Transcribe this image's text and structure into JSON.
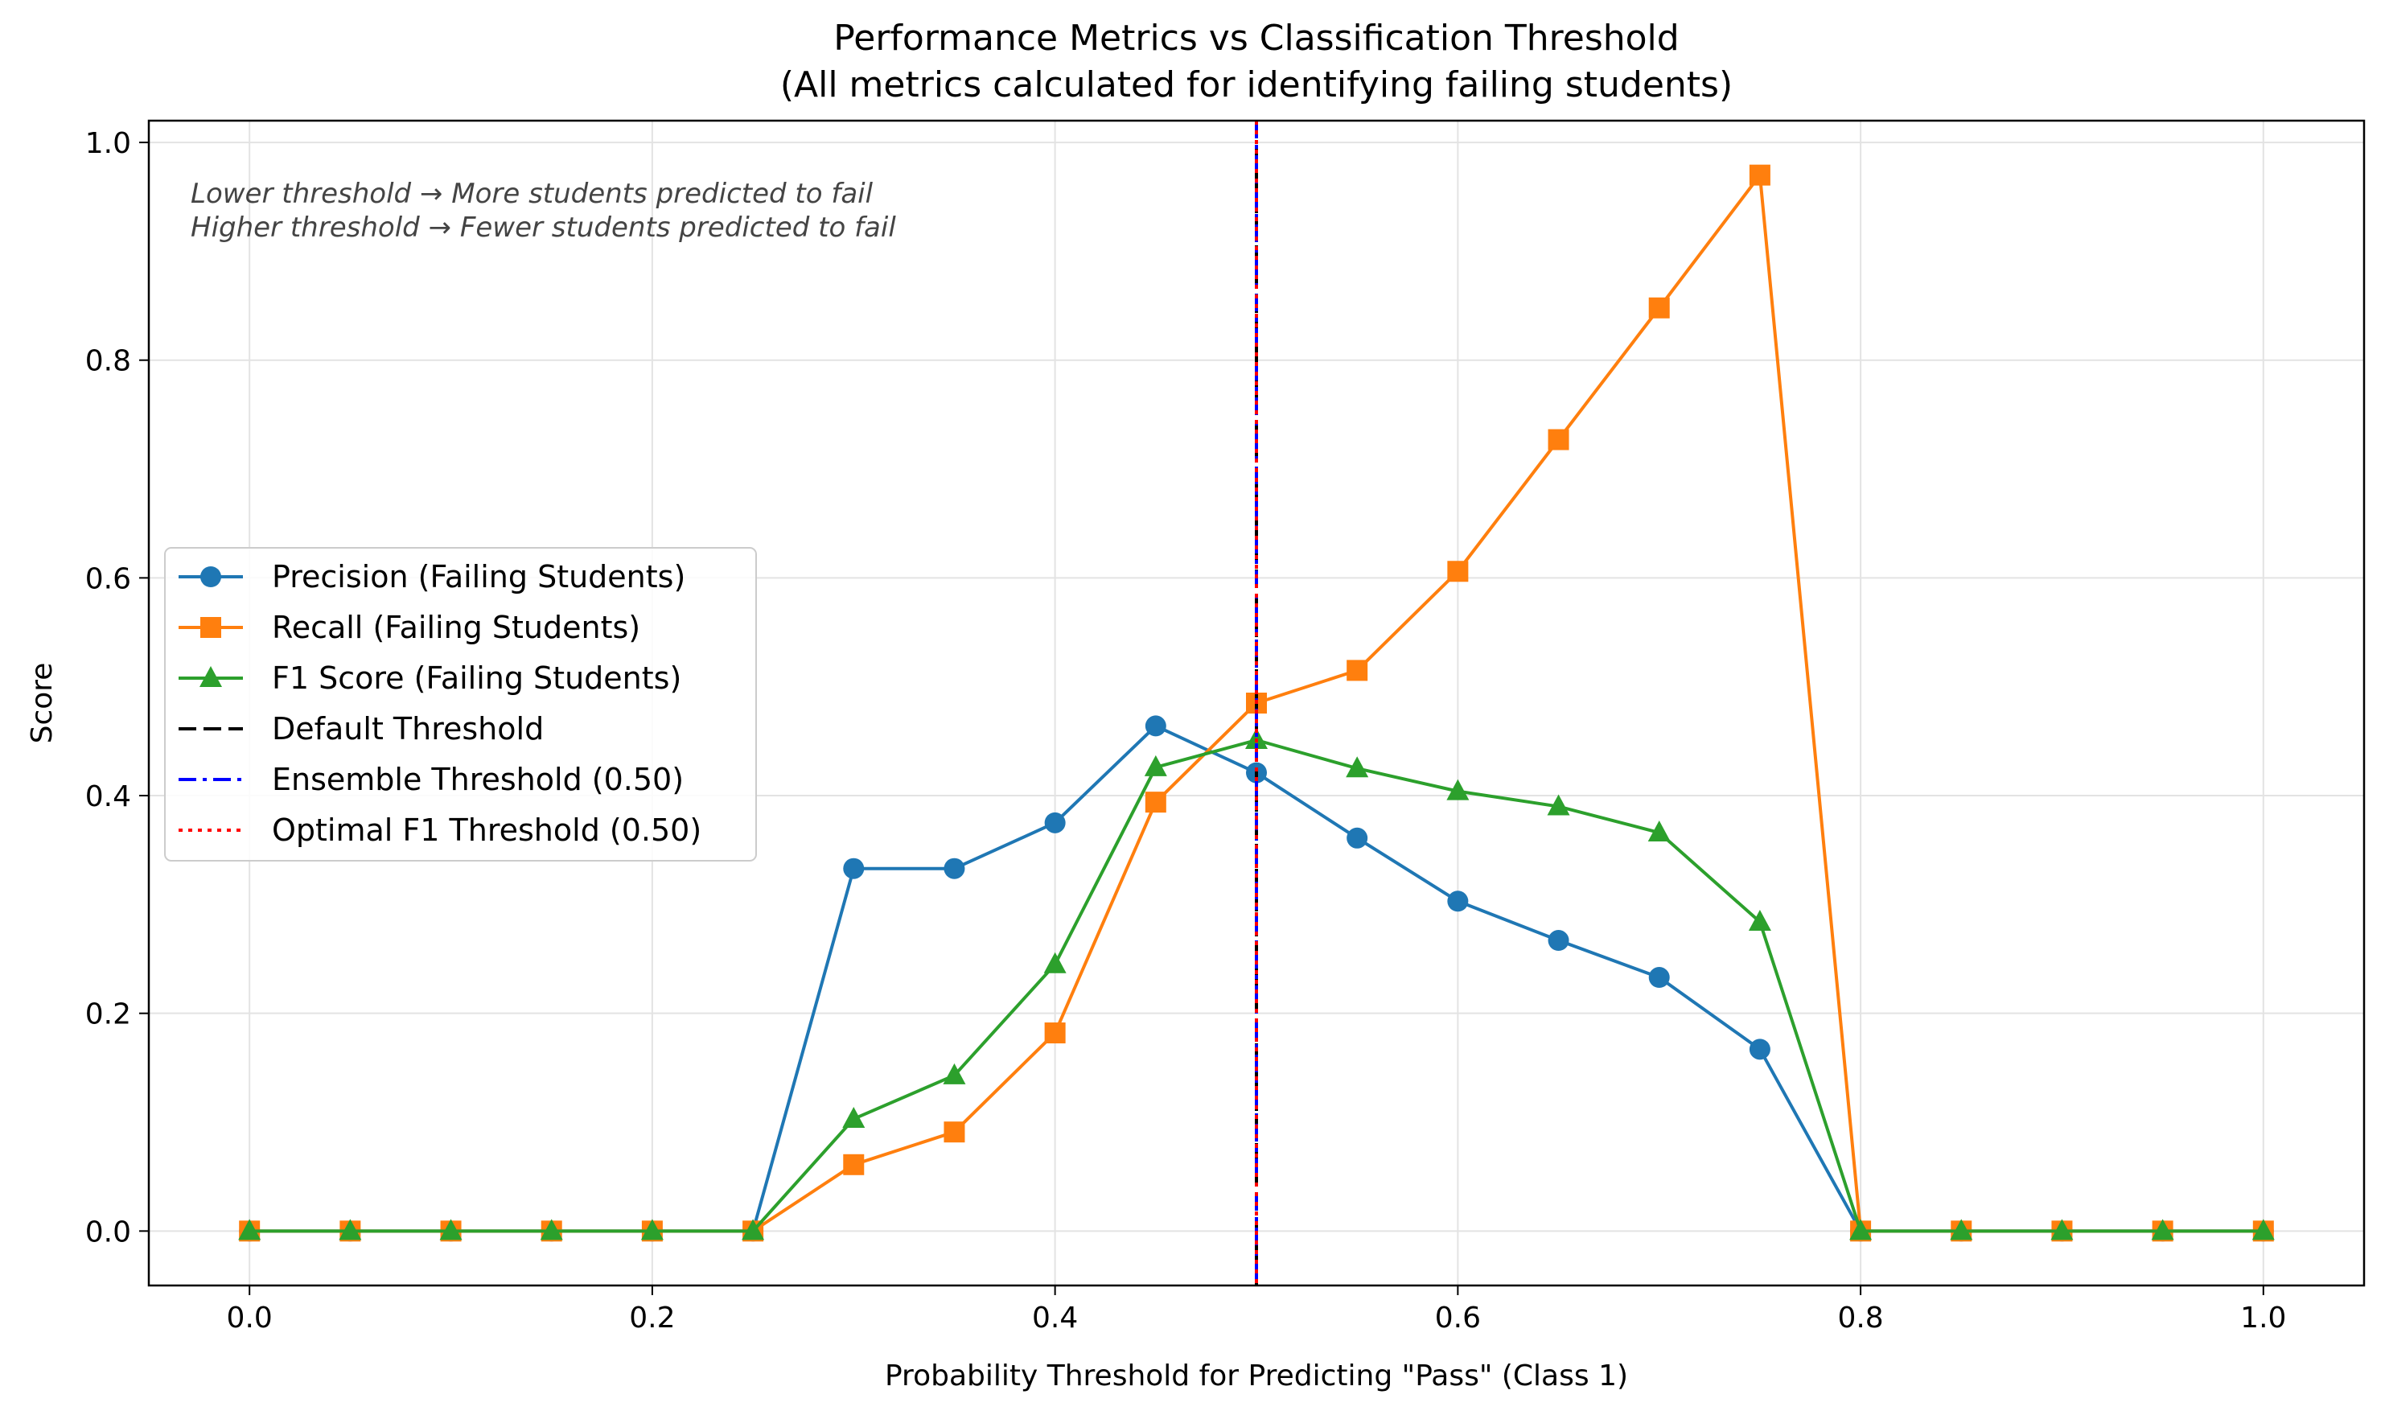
{
  "chart_data": {
    "type": "line",
    "title": "Performance Metrics vs Classification Threshold",
    "subtitle": "(All metrics calculated for identifying failing students)",
    "xlabel": "Probability Threshold for Predicting \"Pass\" (Class 1)",
    "ylabel": "Score",
    "xlim": [
      -0.05,
      1.05
    ],
    "ylim": [
      -0.05,
      1.02
    ],
    "xticks": [
      0.0,
      0.2,
      0.4,
      0.6,
      0.8,
      1.0
    ],
    "xtick_labels": [
      "0.0",
      "0.2",
      "0.4",
      "0.6",
      "0.8",
      "1.0"
    ],
    "yticks": [
      0.0,
      0.2,
      0.4,
      0.6,
      0.8,
      1.0
    ],
    "ytick_labels": [
      "0.0",
      "0.2",
      "0.4",
      "0.6",
      "0.8",
      "1.0"
    ],
    "grid": true,
    "legend_position": "center-left",
    "annotations": [
      "Lower threshold → More students predicted to fail",
      "Higher threshold → Fewer students predicted to fail"
    ],
    "x": [
      0.0,
      0.05,
      0.1,
      0.15,
      0.2,
      0.25,
      0.3,
      0.35,
      0.4,
      0.45,
      0.5,
      0.55,
      0.6,
      0.65,
      0.7,
      0.75,
      0.8,
      0.85,
      0.9,
      0.95,
      1.0
    ],
    "series": [
      {
        "name": "Precision (Failing Students)",
        "color": "#1f77b4",
        "marker": "circle",
        "values": [
          0,
          0,
          0,
          0,
          0,
          0,
          0.333,
          0.333,
          0.375,
          0.464,
          0.421,
          0.361,
          0.303,
          0.267,
          0.233,
          0.167,
          0,
          0,
          0,
          0,
          0
        ]
      },
      {
        "name": "Recall (Failing Students)",
        "color": "#ff7f0e",
        "marker": "square",
        "values": [
          0,
          0,
          0,
          0,
          0,
          0,
          0.061,
          0.091,
          0.182,
          0.394,
          0.485,
          0.515,
          0.606,
          0.727,
          0.848,
          0.97,
          0,
          0,
          0,
          0,
          0
        ]
      },
      {
        "name": "F1 Score (Failing Students)",
        "color": "#2ca02c",
        "marker": "triangle",
        "values": [
          0,
          0,
          0,
          0,
          0,
          0,
          0.103,
          0.143,
          0.245,
          0.426,
          0.451,
          0.425,
          0.404,
          0.39,
          0.366,
          0.284,
          0,
          0,
          0,
          0,
          0
        ]
      }
    ],
    "vlines": [
      {
        "name": "Default Threshold",
        "x": 0.5,
        "color": "#000000",
        "style": "dashed"
      },
      {
        "name": "Ensemble Threshold (0.50)",
        "x": 0.5,
        "color": "#0000ff",
        "style": "dashdot"
      },
      {
        "name": "Optimal F1 Threshold (0.50)",
        "x": 0.5,
        "color": "#ff0000",
        "style": "dotted"
      }
    ]
  }
}
